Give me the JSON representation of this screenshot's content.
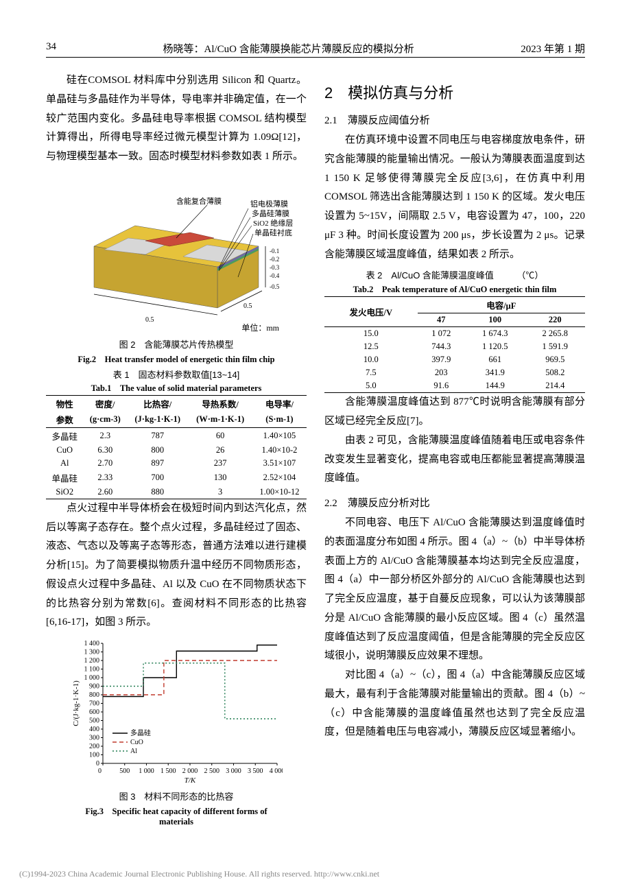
{
  "header": {
    "page_num": "34",
    "running_title": "杨晓等：Al/CuO 含能薄膜换能芯片薄膜反应的模拟分析",
    "issue": "2023 年第 1 期"
  },
  "left": {
    "p_pre_fig2": "硅在COMSOL 材料库中分别选用 Silicon 和 Quartz。单晶硅与多晶硅作为半导体，导电率并非确定值，在一个较广范围内变化。多晶硅电导率根据 COMSOL 结构模型计算得出，所得电导率经过微元模型计算为 1.09Ω[12]，与物理模型基本一致。固态时模型材料参数如表 1 所示。",
    "fig2": {
      "labels": {
        "a": "含能复合薄膜",
        "b": "铝电极薄膜",
        "c": "多晶硅薄膜",
        "d": "SiO2 绝缘层",
        "e": "单晶硅衬底",
        "unit": "单位：mm"
      },
      "dims": {
        "w": "0.5",
        "h": "0.5",
        "neg": [
          "-0.1",
          "-0.2",
          "-0.3",
          "-0.4"
        ],
        "z": "-0.5"
      },
      "caption_cn": "图 2　含能薄膜芯片传热模型",
      "caption_en": "Fig.2　Heat transfer model of energetic thin film chip",
      "colors": {
        "top_film": "#c94a3a",
        "electrode": "#d7d7d7",
        "poly": "#6a6aa8",
        "sio2": "#4a9b5f",
        "substrate_top": "#e6c23b",
        "substrate_side": "#c6a431"
      }
    },
    "tab1": {
      "caption_cn": "表 1　固态材料参数取值[13~14]",
      "caption_en": "Tab.1　The value of solid material parameters",
      "headers_row1": [
        "物性",
        "密度/",
        "比热容/",
        "导热系数/",
        "电导率/"
      ],
      "headers_row2": [
        "参数",
        "(g·cm-3)",
        "(J·kg-1·K-1)",
        "(W·m-1·K-1)",
        "(S·m-1)"
      ],
      "rows": [
        [
          "多晶硅",
          "2.3",
          "787",
          "60",
          "1.40×105"
        ],
        [
          "CuO",
          "6.30",
          "800",
          "26",
          "1.40×10-2"
        ],
        [
          "Al",
          "2.70",
          "897",
          "237",
          "3.51×107"
        ],
        [
          "单晶硅",
          "2.33",
          "700",
          "130",
          "2.52×104"
        ],
        [
          "SiO2",
          "2.60",
          "880",
          "3",
          "1.00×10-12"
        ]
      ]
    },
    "p_after_tab1": "点火过程中半导体桥会在极短时间内到达汽化点，然后以等离子态存在。整个点火过程，多晶硅经过了固态、液态、气态以及等离子态等形态，普通方法难以进行建模分析[15]。为了简要模拟物质升温中经历不同物质形态，假设点火过程中多晶硅、Al 以及 CuO 在不同物质状态下的比热容分别为常数[6]。查阅材料不同形态的比热容[6,16-17]，如图 3 所示。",
    "fig3": {
      "type": "line",
      "xlabel": "T/K",
      "ylabel": "C/(J·kg-1·K-1)",
      "xlim": [
        0,
        4000
      ],
      "ylim": [
        0,
        1400
      ],
      "xtick_step": 500,
      "ytick_step": 100,
      "series": [
        {
          "name": "多晶硅",
          "label": "多晶硅",
          "color": "#000000",
          "dash": "0",
          "points": [
            [
              0,
              780
            ],
            [
              930,
              780
            ],
            [
              930,
              1000
            ],
            [
              1690,
              1000
            ],
            [
              1690,
              1310
            ],
            [
              3540,
              1310
            ],
            [
              3540,
              1380
            ],
            [
              4000,
              1380
            ]
          ]
        },
        {
          "name": "CuO",
          "label": "CuO",
          "color": "#c0392b",
          "dash": "6,4",
          "points": [
            [
              0,
              800
            ],
            [
              1400,
              800
            ],
            [
              1400,
              1200
            ],
            [
              4000,
              1200
            ]
          ]
        },
        {
          "name": "Al",
          "label": "Al",
          "color": "#1f7a4f",
          "dash": "2,3",
          "points": [
            [
              0,
              900
            ],
            [
              930,
              900
            ],
            [
              930,
              1170
            ],
            [
              2800,
              1170
            ],
            [
              2800,
              520
            ],
            [
              4000,
              520
            ]
          ]
        }
      ],
      "legend_pos": "inside-left-bottom",
      "caption_cn": "图 3　材料不同形态的比热容",
      "caption_en": "Fig.3　Specific heat capacity of different forms of materials",
      "background_color": "#ffffff",
      "grid": false,
      "axis_color": "#000000",
      "label_fontsize": 11,
      "tick_fontsize": 10
    }
  },
  "right": {
    "h2": "2　模拟仿真与分析",
    "s21_title": "2.1　薄膜反应阈值分析",
    "s21_p": "在仿真环境中设置不同电压与电容梯度放电条件，研究含能薄膜的能量输出情况。一般认为薄膜表面温度到达 1 150 K 足够使得薄膜完全反应[3,6]，在仿真中利用 COMSOL 筛选出含能薄膜达到 1 150 K 的区域。发火电压设置为 5~15V，间隔取 2.5 V，电容设置为 47，100，220 μF 3 种。时间长度设置为 200 μs，步长设置为 2 μs。记录含能薄膜区域温度峰值，结果如表 2 所示。",
    "tab2": {
      "caption_cn": "表 2　Al/CuO 含能薄膜温度峰值",
      "unit": "（℃）",
      "caption_en": "Tab.2　Peak temperature of Al/CuO energetic thin film",
      "col_group": "电容/μF",
      "row_header": "发火电压/V",
      "cols": [
        "47",
        "100",
        "220"
      ],
      "rows": [
        [
          "15.0",
          "1 072",
          "1 674.3",
          "2 265.8"
        ],
        [
          "12.5",
          "744.3",
          "1 120.5",
          "1 591.9"
        ],
        [
          "10.0",
          "397.9",
          "661",
          "969.5"
        ],
        [
          "7.5",
          "203",
          "341.9",
          "508.2"
        ],
        [
          "5.0",
          "91.6",
          "144.9",
          "214.4"
        ]
      ]
    },
    "p_after_tab2_1": "含能薄膜温度峰值达到 877℃时说明含能薄膜有部分区域已经完全反应[7]。",
    "p_after_tab2_2": "由表 2 可见，含能薄膜温度峰值随着电压或电容条件改变发生显著变化，提高电容或电压都能显著提高薄膜温度峰值。",
    "s22_title": "2.2　薄膜反应分析对比",
    "s22_p1": "不同电容、电压下 Al/CuO 含能薄膜达到温度峰值时的表面温度分布如图 4 所示。图 4（a）~（b）中半导体桥表面上方的 Al/CuO 含能薄膜基本均达到完全反应温度，图 4（a）中一部分桥区外部分的 Al/CuO 含能薄膜也达到了完全反应温度，基于自蔓反应现象，可以认为该薄膜部分是 Al/CuO 含能薄膜的最小反应区域。图 4（c）虽然温度峰值达到了反应温度阈值，但是含能薄膜的完全反应区域很小，说明薄膜反应效果不理想。",
    "s22_p2": "对比图 4（a）~（c），图 4（a）中含能薄膜反应区域最大，最有利于含能薄膜对能量输出的贡献。图 4（b）~（c）中含能薄膜的温度峰值虽然也达到了完全反应温度，但是随着电压与电容减小，薄膜反应区域显著缩小。"
  },
  "footer": {
    "text": "(C)1994-2023 China Academic Journal Electronic Publishing House. All rights reserved.    http://www.cnki.net"
  }
}
